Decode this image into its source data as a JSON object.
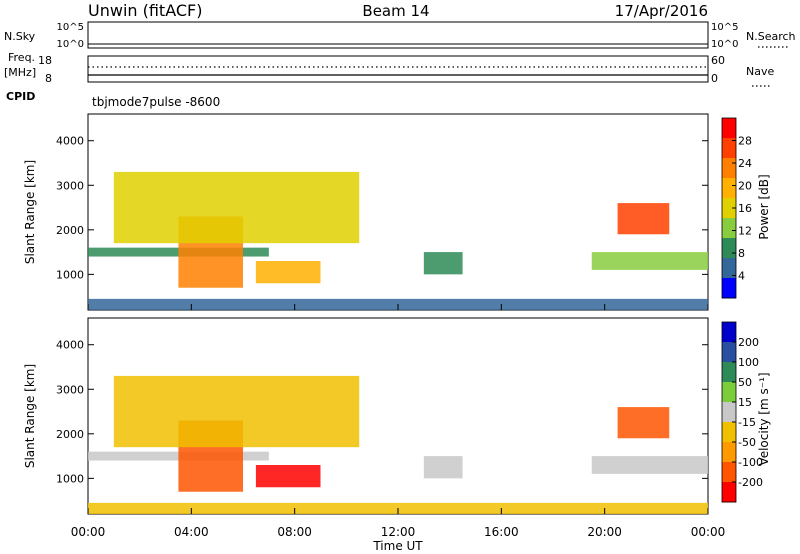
{
  "header": {
    "left": "Unwin (fitACF)",
    "center": "Beam 14",
    "right": "17/Apr/2016"
  },
  "sky_panel": {
    "left_label": "N.Sky",
    "right_label": "N.Search",
    "ticks_left": [
      "10^5",
      "10^0"
    ],
    "ticks_right": [
      "10^5",
      "10^0"
    ]
  },
  "freq_panel": {
    "left_label_1": "Freq.",
    "left_label_2": "[MHz]",
    "ticks_left": [
      "18",
      "8"
    ],
    "ticks_right": [
      "60",
      "0"
    ],
    "right_label": "Nave"
  },
  "cpid": {
    "label": "CPID",
    "value": "tbjmode7pulse -8600"
  },
  "power_panel": {
    "ylabel": "Slant Range [km]",
    "colorbar_label": "Power [dB]",
    "yticks": [
      "4000",
      "3000",
      "2000",
      "1000"
    ],
    "cb_ticks": [
      "28",
      "24",
      "20",
      "16",
      "12",
      "8",
      "4"
    ],
    "cb_colors": [
      "#ff0000",
      "#ff4000",
      "#ff8000",
      "#ffb000",
      "#e0d000",
      "#88cc40",
      "#2e8b57",
      "#336699",
      "#0000ff"
    ]
  },
  "velocity_panel": {
    "ylabel": "Slant Range [km]",
    "colorbar_label": "Velocity [m s⁻¹]",
    "yticks": [
      "4000",
      "3000",
      "2000",
      "1000"
    ],
    "cb_ticks": [
      "200",
      "100",
      "50",
      "15",
      "-15",
      "-50",
      "-100",
      "-200"
    ],
    "cb_colors": [
      "#0000cc",
      "#2a4fa0",
      "#2e8b57",
      "#7ccd3c",
      "#c8c8c8",
      "#f0c000",
      "#ff9900",
      "#ff5500",
      "#ff0000"
    ]
  },
  "x_axis": {
    "ticks": [
      "00:00",
      "04:00",
      "08:00",
      "12:00",
      "16:00",
      "20:00",
      "00:00"
    ],
    "label": "Time UT"
  },
  "chart_data": {
    "type": "heatmap",
    "title": "Unwin (fitACF)  Beam 14  17/Apr/2016",
    "xlabel": "Time UT",
    "ylabel": "Slant Range [km]",
    "x_range_hours": [
      0,
      24
    ],
    "y_range_km": [
      200,
      4600
    ],
    "power_colorbar": {
      "label": "Power [dB]",
      "range": [
        0,
        30
      ]
    },
    "velocity_colorbar": {
      "label": "Velocity [m s⁻¹]",
      "range": [
        -250,
        250
      ]
    },
    "regions": [
      {
        "name": "band",
        "t_start": 0.0,
        "t_end": 7.0,
        "r_min": 1400,
        "r_max": 1600,
        "power": 8,
        "velocity": 5
      },
      {
        "name": "streak",
        "t_start": 3.5,
        "t_end": 6.0,
        "r_min": 700,
        "r_max": 2300,
        "power": 22,
        "velocity": -180
      },
      {
        "name": "blob",
        "t_start": 6.5,
        "t_end": 9.0,
        "r_min": 800,
        "r_max": 1300,
        "power": 18,
        "velocity": -200
      },
      {
        "name": "arc",
        "t_start": 1.0,
        "t_end": 10.5,
        "r_min": 1700,
        "r_max": 3300,
        "power": 14,
        "velocity": -40
      },
      {
        "name": "patch",
        "t_start": 13.0,
        "t_end": 14.5,
        "r_min": 1000,
        "r_max": 1500,
        "power": 10,
        "velocity": 10
      },
      {
        "name": "late-band",
        "t_start": 19.5,
        "t_end": 24.0,
        "r_min": 1100,
        "r_max": 1500,
        "power": 12,
        "velocity": 10
      },
      {
        "name": "late-streak",
        "t_start": 20.5,
        "t_end": 22.5,
        "r_min": 1900,
        "r_max": 2600,
        "power": 24,
        "velocity": -150
      },
      {
        "name": "ground",
        "t_start": 0.0,
        "t_end": 24.0,
        "r_min": 200,
        "r_max": 450,
        "power": 6,
        "velocity": -60
      }
    ]
  }
}
